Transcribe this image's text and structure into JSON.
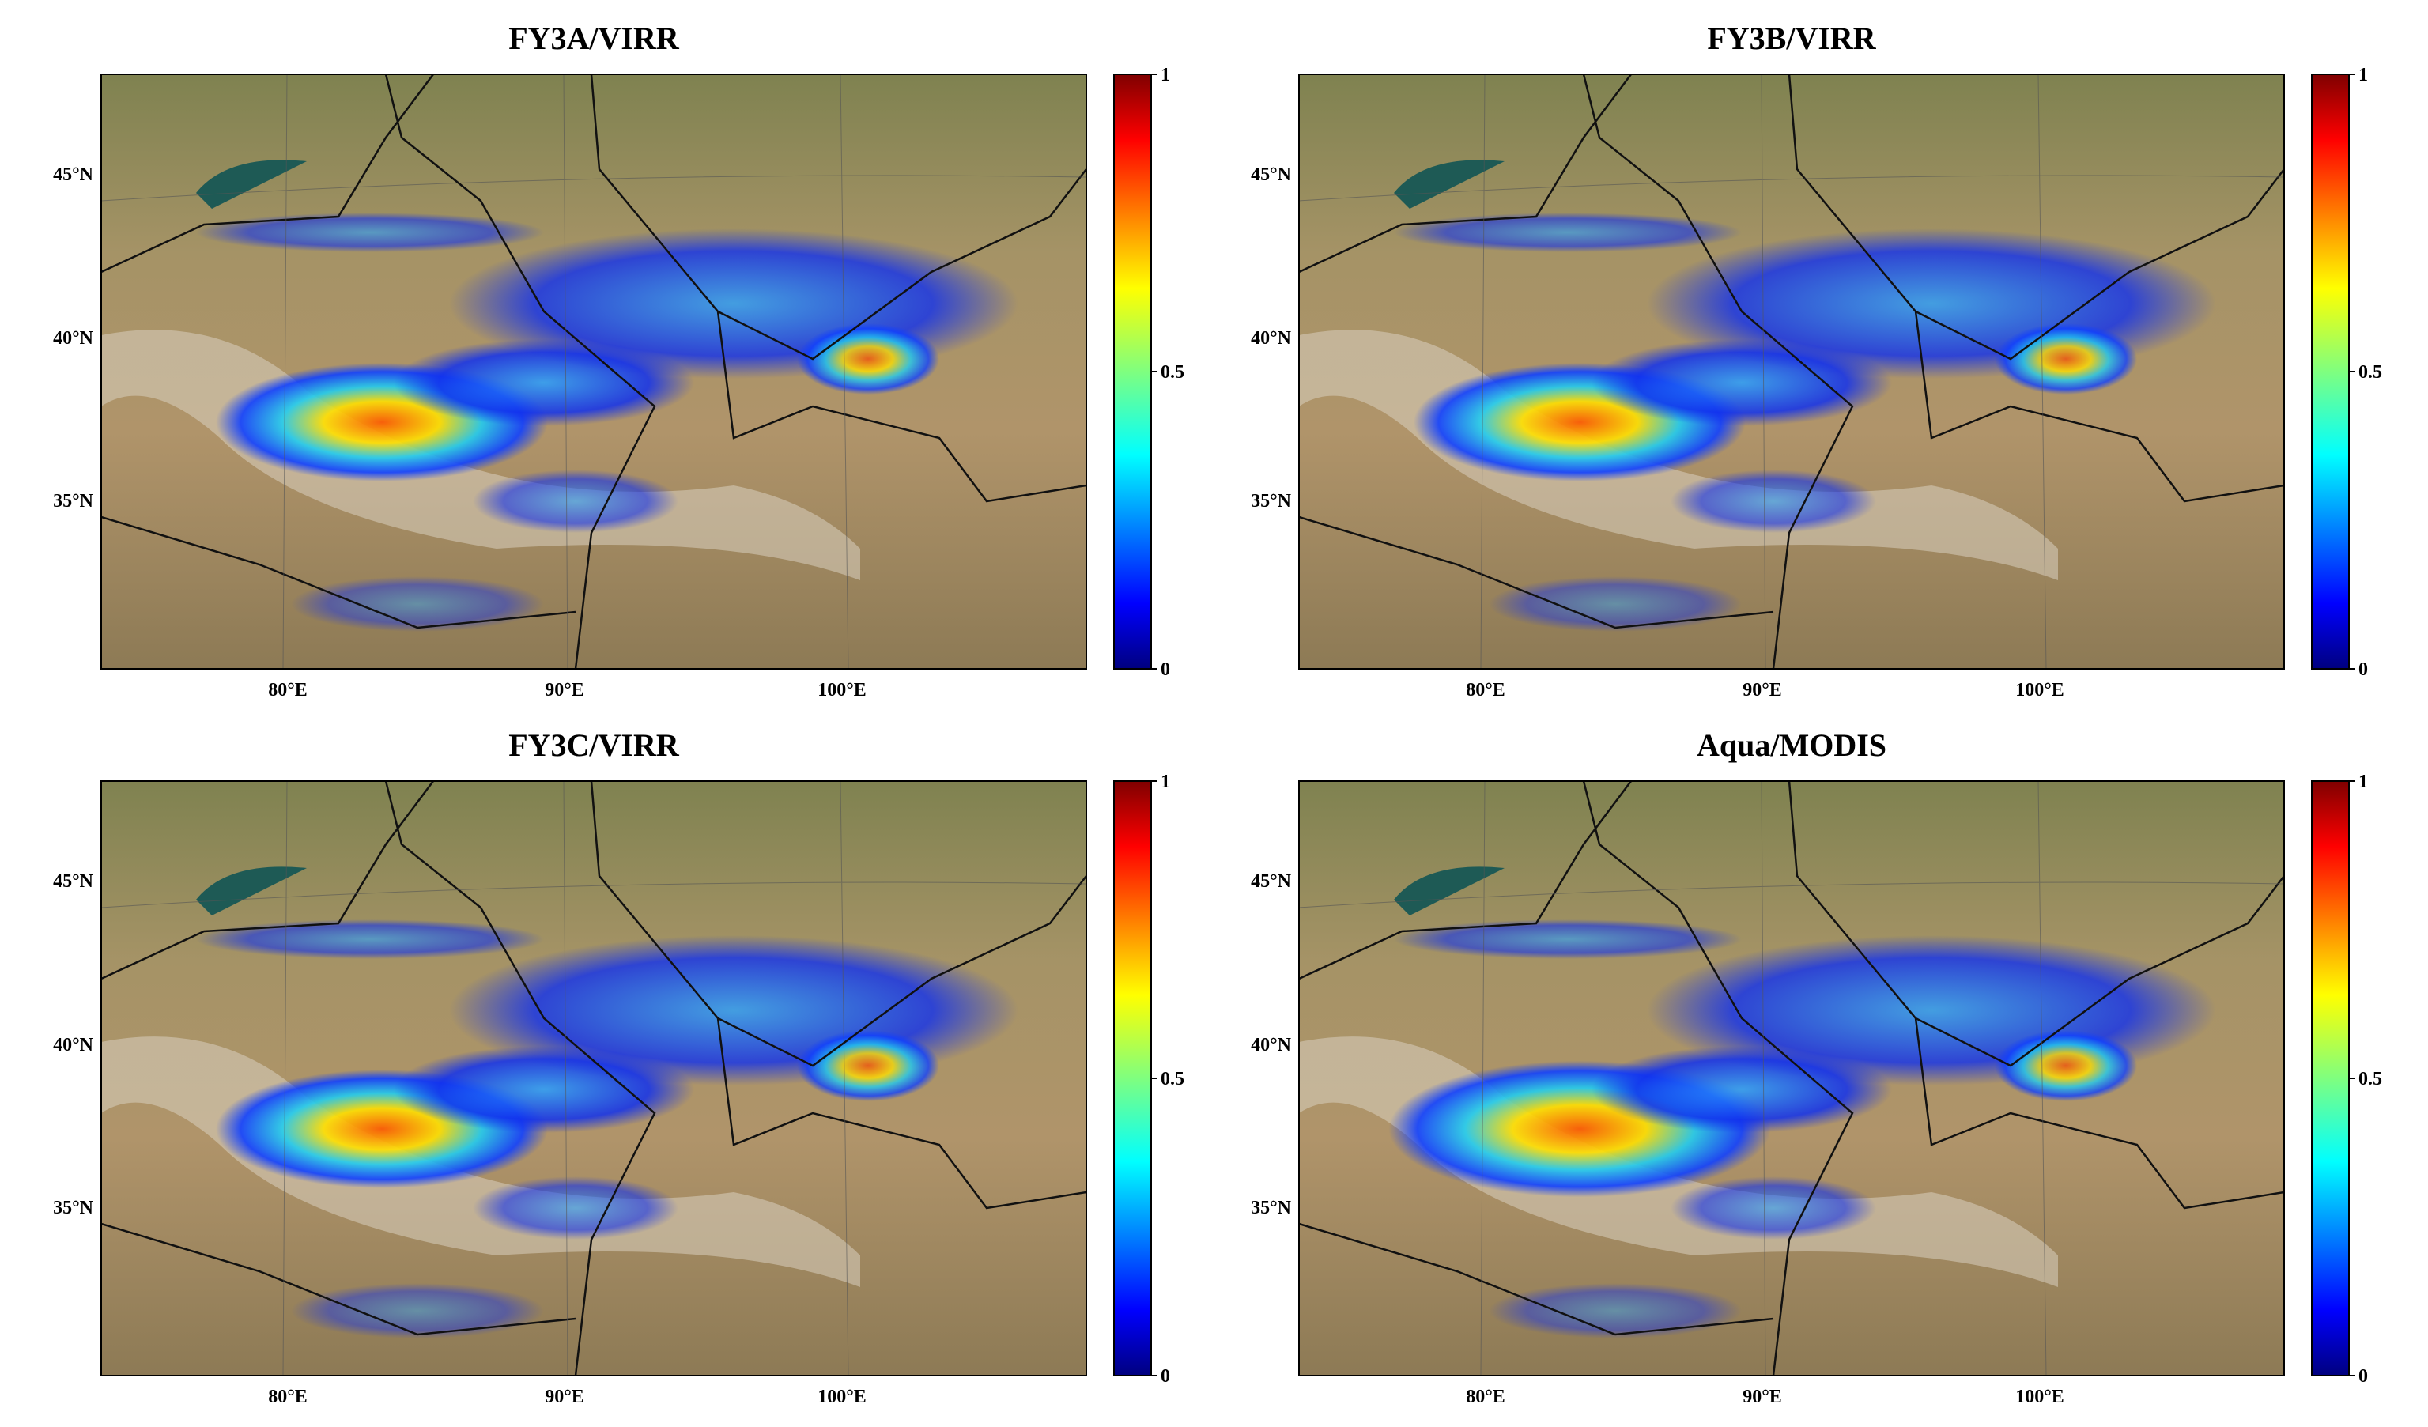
{
  "panels": [
    {
      "title": "FY3A/VIRR"
    },
    {
      "title": "FY3B/VIRR"
    },
    {
      "title": "FY3C/VIRR"
    },
    {
      "title": "Aqua/MODIS"
    }
  ],
  "lat_labels": [
    "45°N",
    "40°N",
    "35°N"
  ],
  "lon_labels": [
    "80°E",
    "90°E",
    "100°E"
  ],
  "colorbar": {
    "range": [
      0,
      1
    ],
    "ticks": [
      0,
      0.5,
      1
    ]
  }
}
